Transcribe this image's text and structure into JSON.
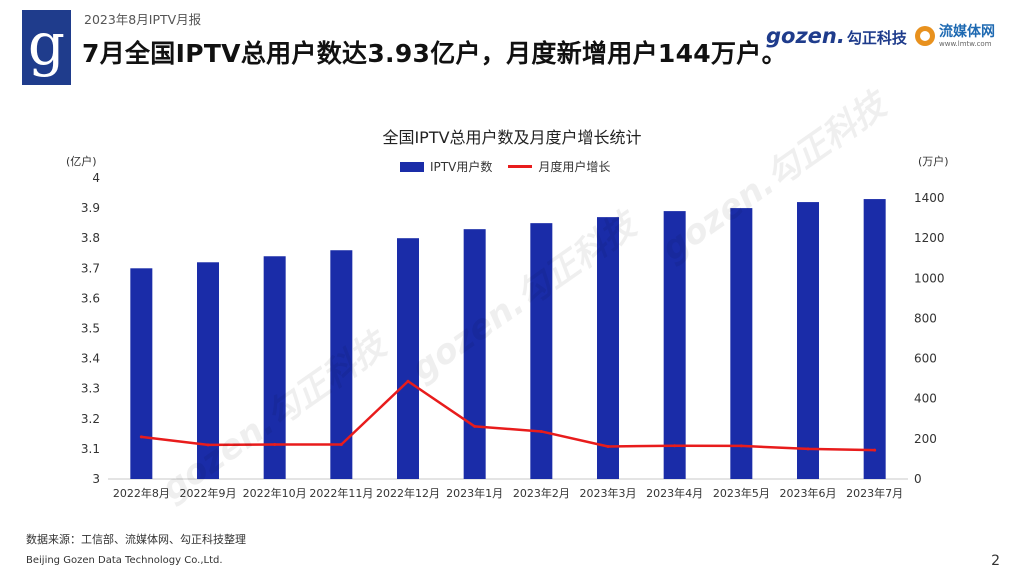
{
  "header": {
    "report_tag": "2023年8月IPTV月报",
    "title": "7月全国IPTV总用户数达3.93亿户，月度新增用户144万户。",
    "logo_letter": "g",
    "brand_gozen": "gozen.",
    "brand_gozen_cn": "勾正科技",
    "brand_lmt_name": "流媒体网",
    "brand_lmt_url": "www.lmtw.com"
  },
  "colors": {
    "brand": "#1f3c8c",
    "bar": "#1a2ca8",
    "line": "#e81c1c"
  },
  "chart_data": {
    "type": "bar",
    "title": "全国IPTV总用户数及月度户增长统计",
    "categories": [
      "2022年8月",
      "2022年9月",
      "2022年10月",
      "2022年11月",
      "2022年12月",
      "2023年1月",
      "2023年2月",
      "2023年3月",
      "2023年4月",
      "2023年5月",
      "2023年6月",
      "2023年7月"
    ],
    "series": [
      {
        "name": "IPTV用户数",
        "type": "bar",
        "axis": "left",
        "values": [
          3.7,
          3.72,
          3.74,
          3.76,
          3.8,
          3.83,
          3.85,
          3.87,
          3.89,
          3.9,
          3.92,
          3.93
        ]
      },
      {
        "name": "月度用户增长",
        "type": "line",
        "axis": "right",
        "values": [
          210,
          170,
          172,
          172,
          487,
          262,
          237,
          162,
          166,
          165,
          150,
          144
        ]
      }
    ],
    "ylabel_left": "(亿户)",
    "ylabel_right": "(万户)",
    "ylim_left": [
      3,
      4
    ],
    "yticks_left": [
      "3",
      "3.1",
      "3.2",
      "3.3",
      "3.4",
      "3.5",
      "3.6",
      "3.7",
      "3.8",
      "3.9",
      "4"
    ],
    "ylim_right": [
      0,
      1500
    ],
    "yticks_right": [
      "0",
      "200",
      "400",
      "600",
      "800",
      "1000",
      "1200",
      "1400"
    ],
    "legend_position": "top-center",
    "grid": false
  },
  "footer": {
    "source": "数据来源：工信部、流媒体网、勾正科技整理",
    "company": "Beijing Gozen Data Technology Co.,Ltd.",
    "page": "2"
  }
}
